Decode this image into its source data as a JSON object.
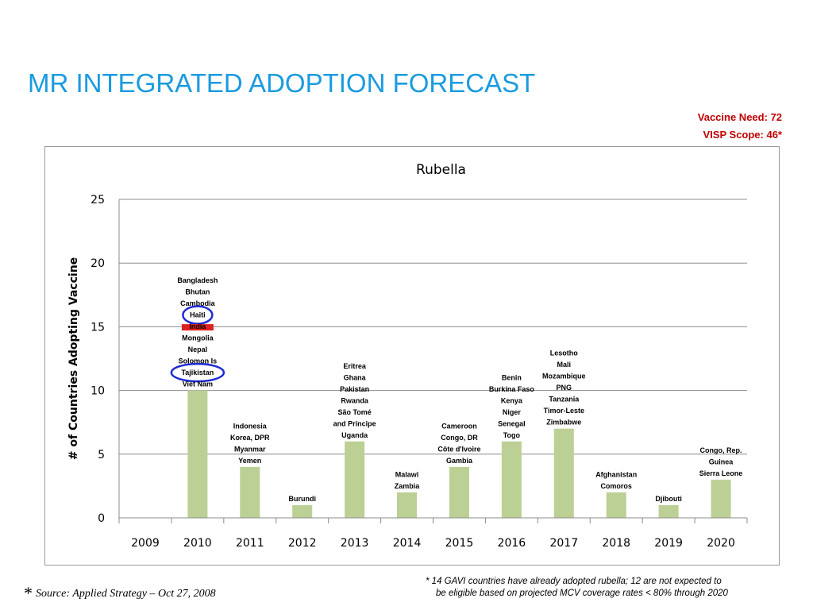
{
  "slide": {
    "title": "MR INTEGRATED ADOPTION FORECAST",
    "vaccine_need": "Vaccine Need: 72",
    "visp_scope": "VISP Scope: 46*",
    "source_star": "*",
    "source_text": "Source: Applied Strategy – Oct 27, 2008",
    "footnote_line1": "* 14 GAVI countries have already adopted rubella; 12 are not expected to",
    "footnote_line2": "be eligible based on projected MCV coverage rates < 80% through 2020"
  },
  "colors": {
    "title": "#1a9be0",
    "bar_fill": "#bcd095",
    "highlight_circle": "#1f2bd6",
    "red_marker": "#e02020",
    "need_text": "#c00000"
  },
  "chart_data": {
    "type": "bar",
    "title": "Rubella",
    "ylabel": "# of Countries Adopting Vaccine",
    "xlabel": "",
    "ylim": [
      0,
      25
    ],
    "yticks": [
      0,
      5,
      10,
      15,
      20,
      25
    ],
    "grid": true,
    "categories": [
      "2009",
      "2010",
      "2011",
      "2012",
      "2013",
      "2014",
      "2015",
      "2016",
      "2017",
      "2018",
      "2019",
      "2020"
    ],
    "values": [
      0,
      10,
      4,
      1,
      6,
      2,
      4,
      6,
      7,
      2,
      1,
      3
    ],
    "country_labels": [
      [],
      [
        "Bangladesh",
        "Bhutan",
        "Cambodia",
        "Haiti",
        "India",
        "Mongolia",
        "Nepal",
        "Solomon Is",
        "Tajikistan",
        "Viet Nam"
      ],
      [
        "Indonesia",
        "Korea, DPR",
        "Myanmar",
        "Yemen"
      ],
      [
        "Burundi"
      ],
      [
        "Eritrea",
        "Ghana",
        "Pakistan",
        "Rwanda",
        "São Tomé",
        "and Principe",
        "Uganda"
      ],
      [
        "Malawi",
        "Zambia"
      ],
      [
        "Cameroon",
        "Congo, DR",
        "Côte d'Ivoire",
        "Gambia"
      ],
      [
        "Benin",
        "Burkina Faso",
        "Kenya",
        "Niger",
        "Senegal",
        "Togo"
      ],
      [
        "Lesotho",
        "Mali",
        "Mozambique",
        "PNG",
        "Tanzania",
        "Timor-Leste",
        "Zimbabwe"
      ],
      [
        "Afghanistan",
        "Comoros"
      ],
      [
        "Djibouti"
      ],
      [
        "Congo, Rep.",
        "Guinea",
        "Sierra Leone"
      ]
    ],
    "circled_labels": [
      "Haiti",
      "Tajikistan"
    ],
    "red_marked_labels": [
      "India"
    ]
  }
}
